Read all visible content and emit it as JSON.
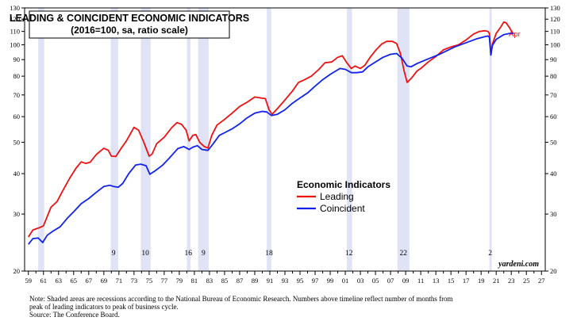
{
  "chart_data": {
    "type": "line",
    "title": "LEADING & COINCIDENT ECONOMIC INDICATORS",
    "subtitle": "(2016=100, sa, ratio scale)",
    "legend_title": "Economic Indicators",
    "legend_placement": "center-right",
    "scale": "log",
    "ylim": [
      20,
      130
    ],
    "xlim": [
      1958.5,
      2027.5
    ],
    "y_ticks": [
      20,
      30,
      40,
      50,
      60,
      70,
      80,
      90,
      100,
      110,
      120,
      130
    ],
    "x_tick_labels": [
      "59",
      "61",
      "63",
      "65",
      "67",
      "69",
      "71",
      "73",
      "75",
      "77",
      "79",
      "81",
      "83",
      "85",
      "87",
      "89",
      "91",
      "93",
      "95",
      "97",
      "99",
      "01",
      "03",
      "05",
      "07",
      "09",
      "11",
      "13",
      "15",
      "17",
      "19",
      "21",
      "23",
      "25",
      "27"
    ],
    "recessions": [
      {
        "start": 1960.3,
        "end": 1961.1
      },
      {
        "start": 1969.9,
        "end": 1970.9
      },
      {
        "start": 1973.9,
        "end": 1975.2
      },
      {
        "start": 1980.0,
        "end": 1980.5
      },
      {
        "start": 1981.5,
        "end": 1982.9
      },
      {
        "start": 1990.6,
        "end": 1991.2
      },
      {
        "start": 2001.2,
        "end": 2001.9
      },
      {
        "start": 2007.9,
        "end": 2009.5
      },
      {
        "start": 2020.1,
        "end": 2020.4
      }
    ],
    "recession_lead_labels": [
      {
        "year": 1970.3,
        "label": "9"
      },
      {
        "year": 1974.5,
        "label": "10"
      },
      {
        "year": 1980.2,
        "label": "16"
      },
      {
        "year": 1982.2,
        "label": "9"
      },
      {
        "year": 1990.9,
        "label": "18"
      },
      {
        "year": 2001.5,
        "label": "12"
      },
      {
        "year": 2008.7,
        "label": "22"
      },
      {
        "year": 2020.2,
        "label": "2"
      }
    ],
    "series": [
      {
        "name": "Leading",
        "color": "#ee1111",
        "points": [
          [
            1959.0,
            25.5
          ],
          [
            1959.6,
            26.8
          ],
          [
            1960.4,
            27.2
          ],
          [
            1961.0,
            27.6
          ],
          [
            1961.5,
            29.5
          ],
          [
            1962.0,
            31.5
          ],
          [
            1962.8,
            32.8
          ],
          [
            1963.5,
            35.2
          ],
          [
            1964.5,
            38.8
          ],
          [
            1965.3,
            41.5
          ],
          [
            1966.0,
            43.5
          ],
          [
            1966.6,
            43.0
          ],
          [
            1967.2,
            43.4
          ],
          [
            1968.0,
            45.8
          ],
          [
            1969.0,
            47.9
          ],
          [
            1969.6,
            47.2
          ],
          [
            1970.0,
            45.3
          ],
          [
            1970.6,
            45.2
          ],
          [
            1971.2,
            47.5
          ],
          [
            1972.0,
            50.5
          ],
          [
            1973.0,
            55.6
          ],
          [
            1973.6,
            54.5
          ],
          [
            1974.3,
            50.0
          ],
          [
            1975.0,
            45.3
          ],
          [
            1975.4,
            46.0
          ],
          [
            1976.0,
            49.5
          ],
          [
            1977.0,
            51.8
          ],
          [
            1978.0,
            55.5
          ],
          [
            1978.7,
            57.5
          ],
          [
            1979.3,
            56.8
          ],
          [
            1979.9,
            54.5
          ],
          [
            1980.3,
            50.5
          ],
          [
            1980.8,
            52.5
          ],
          [
            1981.2,
            52.8
          ],
          [
            1981.7,
            50.0
          ],
          [
            1982.3,
            48.5
          ],
          [
            1982.8,
            48.0
          ],
          [
            1983.3,
            52.5
          ],
          [
            1984.0,
            56.5
          ],
          [
            1985.0,
            58.8
          ],
          [
            1986.0,
            61.5
          ],
          [
            1987.0,
            64.5
          ],
          [
            1988.0,
            66.5
          ],
          [
            1989.0,
            69.0
          ],
          [
            1989.8,
            68.5
          ],
          [
            1990.4,
            68.2
          ],
          [
            1990.9,
            63.0
          ],
          [
            1991.3,
            61.0
          ],
          [
            1992.0,
            63.5
          ],
          [
            1993.0,
            67.5
          ],
          [
            1994.0,
            72.0
          ],
          [
            1994.8,
            76.5
          ],
          [
            1995.6,
            78.0
          ],
          [
            1996.5,
            80.0
          ],
          [
            1997.5,
            84.0
          ],
          [
            1998.3,
            88.0
          ],
          [
            1999.2,
            88.5
          ],
          [
            2000.0,
            91.5
          ],
          [
            2000.6,
            92.5
          ],
          [
            2001.2,
            88.0
          ],
          [
            2001.8,
            84.5
          ],
          [
            2002.3,
            86.0
          ],
          [
            2003.0,
            84.5
          ],
          [
            2003.6,
            86.5
          ],
          [
            2004.3,
            91.5
          ],
          [
            2005.0,
            96.0
          ],
          [
            2005.8,
            100.5
          ],
          [
            2006.5,
            102.5
          ],
          [
            2007.2,
            102.5
          ],
          [
            2007.8,
            101.0
          ],
          [
            2008.3,
            94.0
          ],
          [
            2008.8,
            83.0
          ],
          [
            2009.2,
            76.5
          ],
          [
            2009.8,
            79.0
          ],
          [
            2010.5,
            83.0
          ],
          [
            2011.0,
            84.5
          ],
          [
            2012.0,
            88.5
          ],
          [
            2013.0,
            92.0
          ],
          [
            2014.0,
            96.5
          ],
          [
            2015.0,
            98.5
          ],
          [
            2016.0,
            100.0
          ],
          [
            2017.0,
            103.5
          ],
          [
            2018.0,
            108.0
          ],
          [
            2018.8,
            110.0
          ],
          [
            2019.5,
            110.5
          ],
          [
            2019.9,
            110.0
          ],
          [
            2020.1,
            108.5
          ],
          [
            2020.3,
            93.0
          ],
          [
            2020.5,
            100.5
          ],
          [
            2021.0,
            108.5
          ],
          [
            2021.6,
            113.5
          ],
          [
            2022.0,
            117.5
          ],
          [
            2022.3,
            117.0
          ],
          [
            2022.7,
            113.5
          ],
          [
            2023.0,
            110.5
          ],
          [
            2023.3,
            108.0
          ]
        ]
      },
      {
        "name": "Coincident",
        "color": "#1122ee",
        "points": [
          [
            1959.0,
            24.2
          ],
          [
            1959.6,
            25.2
          ],
          [
            1960.3,
            25.3
          ],
          [
            1960.9,
            24.5
          ],
          [
            1961.5,
            25.8
          ],
          [
            1962.3,
            26.6
          ],
          [
            1963.2,
            27.4
          ],
          [
            1964.2,
            29.2
          ],
          [
            1965.0,
            30.5
          ],
          [
            1966.0,
            32.3
          ],
          [
            1967.0,
            33.5
          ],
          [
            1968.0,
            35.0
          ],
          [
            1969.0,
            36.5
          ],
          [
            1969.8,
            36.8
          ],
          [
            1970.3,
            36.5
          ],
          [
            1970.9,
            36.3
          ],
          [
            1971.5,
            37.3
          ],
          [
            1972.3,
            40.0
          ],
          [
            1973.2,
            42.5
          ],
          [
            1973.9,
            42.8
          ],
          [
            1974.6,
            42.3
          ],
          [
            1975.1,
            39.8
          ],
          [
            1975.8,
            40.8
          ],
          [
            1976.8,
            42.5
          ],
          [
            1977.8,
            45.0
          ],
          [
            1978.8,
            47.8
          ],
          [
            1979.6,
            48.5
          ],
          [
            1980.3,
            47.5
          ],
          [
            1980.8,
            48.3
          ],
          [
            1981.4,
            48.8
          ],
          [
            1982.0,
            47.5
          ],
          [
            1982.8,
            47.2
          ],
          [
            1983.5,
            49.5
          ],
          [
            1984.3,
            52.5
          ],
          [
            1985.0,
            53.5
          ],
          [
            1986.0,
            55.0
          ],
          [
            1987.0,
            57.0
          ],
          [
            1988.0,
            59.5
          ],
          [
            1989.0,
            61.5
          ],
          [
            1990.0,
            62.3
          ],
          [
            1990.6,
            62.0
          ],
          [
            1991.2,
            60.5
          ],
          [
            1992.0,
            61.0
          ],
          [
            1993.0,
            63.0
          ],
          [
            1994.0,
            66.0
          ],
          [
            1995.0,
            68.5
          ],
          [
            1996.0,
            71.0
          ],
          [
            1997.0,
            74.5
          ],
          [
            1998.0,
            78.0
          ],
          [
            1999.0,
            81.0
          ],
          [
            2000.3,
            84.5
          ],
          [
            2001.0,
            84.0
          ],
          [
            2001.8,
            82.0
          ],
          [
            2002.5,
            82.0
          ],
          [
            2003.3,
            82.5
          ],
          [
            2004.0,
            85.5
          ],
          [
            2005.0,
            88.5
          ],
          [
            2006.0,
            91.5
          ],
          [
            2007.0,
            93.5
          ],
          [
            2007.8,
            94.0
          ],
          [
            2008.5,
            91.0
          ],
          [
            2009.2,
            86.0
          ],
          [
            2009.7,
            85.5
          ],
          [
            2010.5,
            87.5
          ],
          [
            2011.5,
            89.5
          ],
          [
            2012.5,
            91.5
          ],
          [
            2013.5,
            93.5
          ],
          [
            2014.5,
            96.0
          ],
          [
            2015.5,
            98.5
          ],
          [
            2016.5,
            100.5
          ],
          [
            2017.5,
            102.5
          ],
          [
            2018.5,
            104.5
          ],
          [
            2019.5,
            106.0
          ],
          [
            2019.9,
            106.5
          ],
          [
            2020.1,
            105.5
          ],
          [
            2020.3,
            93.0
          ],
          [
            2020.5,
            99.5
          ],
          [
            2021.0,
            104.0
          ],
          [
            2022.0,
            107.5
          ],
          [
            2022.8,
            108.5
          ],
          [
            2023.3,
            108.5
          ]
        ]
      }
    ],
    "end_label": "Apr",
    "watermark": "yardeni.com",
    "note_lines": [
      "Note: Shaded areas are recessions according to the National Bureau of Economic Research. Numbers above timeline reflect number of months from",
      "peak of leading indicators to peak of business cycle.",
      "Source: The Conference Board."
    ]
  }
}
